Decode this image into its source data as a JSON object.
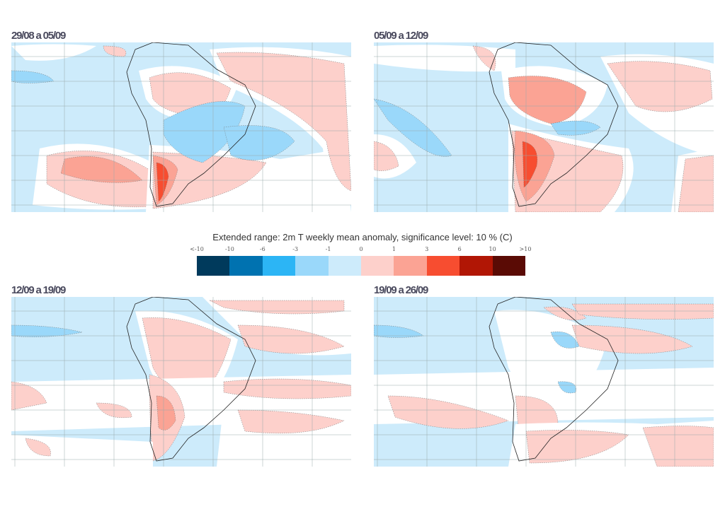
{
  "panels": [
    {
      "title": "29/08 a 05/09"
    },
    {
      "title": "05/09 a 12/09"
    },
    {
      "title": "12/09 a 19/09"
    },
    {
      "title": "19/09 a 26/09"
    }
  ],
  "colorbar": {
    "title": "Extended range: 2m T weekly mean anomaly, significance level: 10 % (C)",
    "labels": [
      "<-10",
      "-10",
      "-6",
      "-3",
      "-1",
      "0",
      "1",
      "3",
      "6",
      "10",
      ">10"
    ],
    "colors": [
      "#003a5c",
      "#0072b0",
      "#2cb5f5",
      "#9ad8fa",
      "#cdebfb",
      "#fdd0cb",
      "#fba394",
      "#f74d30",
      "#b11605",
      "#5a0b05"
    ]
  }
}
